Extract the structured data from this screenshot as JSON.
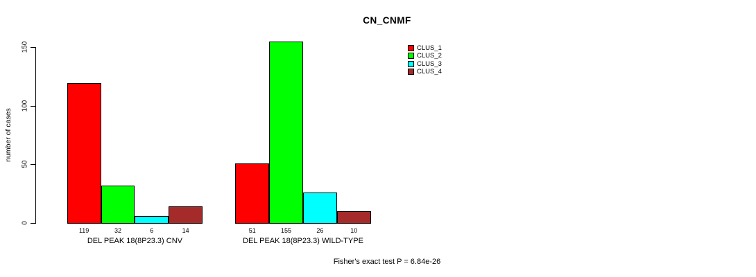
{
  "title": "CN_CNMF",
  "footer": "Fisher's exact test P = 6.84e-26",
  "chart_data": {
    "type": "bar",
    "title": "CN_CNMF",
    "xlabel": "",
    "ylabel": "number of cases",
    "ylim": [
      0,
      150
    ],
    "yticks": [
      0,
      50,
      100,
      150
    ],
    "ytick_labels": [
      "0",
      "50",
      "100",
      "150"
    ],
    "grid": false,
    "legend_position": "top-right",
    "categories": [
      "DEL PEAK 18(8P23.3) CNV",
      "DEL PEAK 18(8P23.3) WILD-TYPE"
    ],
    "series": [
      {
        "name": "CLUS_1",
        "color": "#FF0000",
        "values": [
          119,
          51
        ]
      },
      {
        "name": "CLUS_2",
        "color": "#00FF00",
        "values": [
          32,
          155
        ]
      },
      {
        "name": "CLUS_3",
        "color": "#00FFFF",
        "values": [
          6,
          26
        ]
      },
      {
        "name": "CLUS_4",
        "color": "#A52A2A",
        "values": [
          14,
          10
        ]
      }
    ],
    "groups": [
      {
        "label": "DEL PEAK 18(8P23.3) CNV",
        "values": [
          119,
          32,
          6,
          14
        ],
        "bar_labels": [
          "119",
          "32",
          "6",
          "14"
        ]
      },
      {
        "label": "DEL PEAK 18(8P23.3) WILD-TYPE",
        "values": [
          51,
          155,
          26,
          10
        ],
        "bar_labels": [
          "51",
          "155",
          "26",
          "10"
        ]
      }
    ],
    "legend": [
      {
        "label": "CLUS_1",
        "color": "#FF0000"
      },
      {
        "label": "CLUS_2",
        "color": "#00FF00"
      },
      {
        "label": "CLUS_3",
        "color": "#00FFFF"
      },
      {
        "label": "CLUS_4",
        "color": "#A52A2A"
      }
    ],
    "annotation": "Fisher's exact test P = 6.84e-26"
  }
}
